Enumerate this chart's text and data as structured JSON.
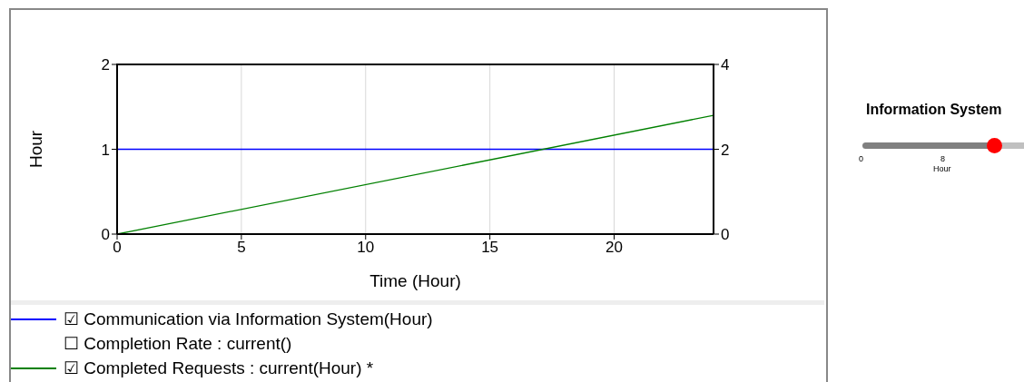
{
  "chart_data": {
    "type": "line",
    "xlabel": "Time (Hour)",
    "ylabel": "Hour",
    "xlim": [
      0,
      24
    ],
    "xticks": [
      0,
      5,
      10,
      15,
      20
    ],
    "ylim": [
      0,
      2
    ],
    "yticks": [
      0,
      1,
      2
    ],
    "y2lim": [
      0,
      4
    ],
    "y2ticks": [
      0,
      2,
      4
    ],
    "grid": "x",
    "legend": "bottom",
    "marker": "none",
    "line_style": "solid",
    "x": [
      0,
      24
    ],
    "series": [
      {
        "name": "☑ Communication via Information System(Hour)",
        "color": "#0000ff",
        "values": [
          1,
          1
        ]
      },
      {
        "name": "☐ Completion Rate : current()",
        "values": [
          null,
          null
        ]
      },
      {
        "name": "☑ Completed Requests : current(Hour) *",
        "color": "#008000",
        "values": [
          0,
          2.8
        ],
        "axis": "y2"
      }
    ],
    "annotations": [
      "Information System",
      "0",
      "8",
      "Hour"
    ]
  }
}
